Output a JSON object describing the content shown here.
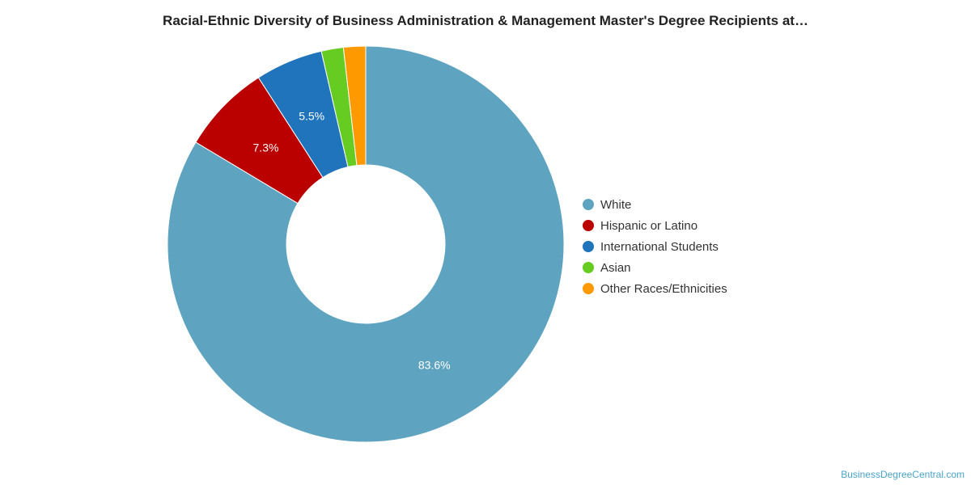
{
  "title": "Racial-Ethnic Diversity of Business Administration & Management Master's Degree Recipients at…",
  "watermark": "BusinessDegreeCentral.com",
  "chart_data": {
    "type": "pie",
    "title": "Racial-Ethnic Diversity of Business Administration & Management Master's Degree Recipients at…",
    "style": "donut",
    "legend_position": "right",
    "categories": [
      "White",
      "Hispanic or Latino",
      "International Students",
      "Asian",
      "Other Races/Ethnicities"
    ],
    "values": [
      83.6,
      7.3,
      5.5,
      1.8,
      1.8
    ],
    "labels": [
      "83.6%",
      "7.3%",
      "5.5%",
      "",
      ""
    ],
    "colors": [
      "#5ea3c0",
      "#bb0000",
      "#1f74bb",
      "#66cc22",
      "#ff9900"
    ]
  }
}
